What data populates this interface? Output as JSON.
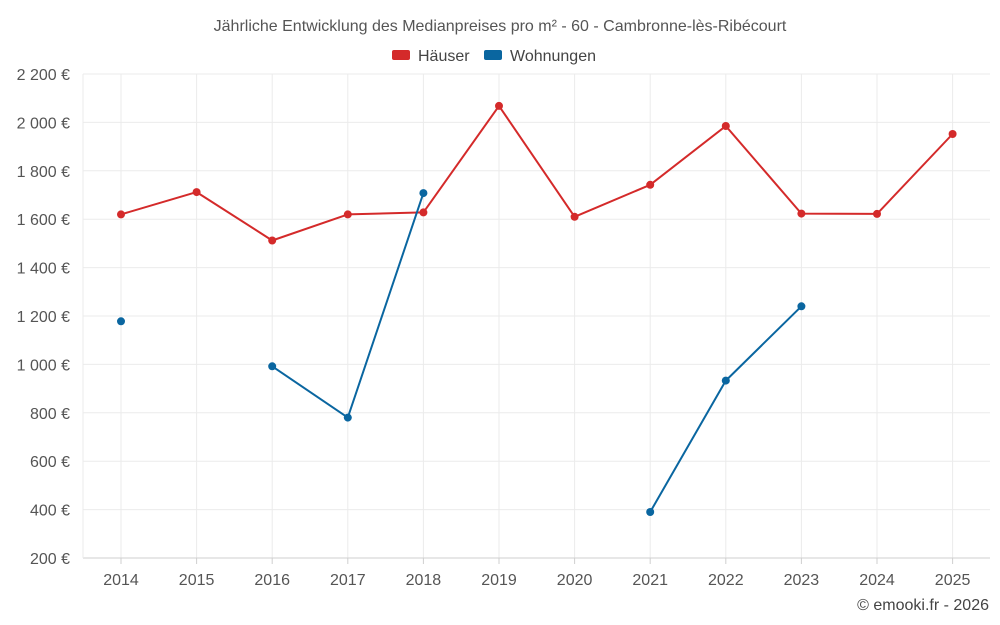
{
  "chart_data": {
    "type": "line",
    "title": "Jährliche Entwicklung des Medianpreises pro m² - 60 - Cambronne-lès-Ribécourt",
    "categories": [
      "2014",
      "2015",
      "2016",
      "2017",
      "2018",
      "2019",
      "2020",
      "2021",
      "2022",
      "2023",
      "2024",
      "2025"
    ],
    "ylim": [
      200,
      2200
    ],
    "y_ticks": [
      200,
      400,
      600,
      800,
      1000,
      1200,
      1400,
      1600,
      1800,
      2000,
      2200
    ],
    "y_tick_labels": [
      "200 €",
      "400 €",
      "600 €",
      "800 €",
      "1 000 €",
      "1 200 €",
      "1 400 €",
      "1 600 €",
      "1 800 €",
      "2 000 €",
      "2 200 €"
    ],
    "grid": true,
    "legend_position": "top-center",
    "series": [
      {
        "name": "Häuser",
        "color": "#d42a2a",
        "values": [
          1620,
          1712,
          1512,
          1620,
          1628,
          2068,
          1610,
          1742,
          1985,
          1623,
          1622,
          1952
        ]
      },
      {
        "name": "Wohnungen",
        "color": "#0a66a0",
        "values": [
          1178,
          null,
          992,
          780,
          1708,
          null,
          null,
          390,
          933,
          1240,
          null,
          null
        ]
      }
    ]
  },
  "credit": "© emooki.fr - 2026"
}
